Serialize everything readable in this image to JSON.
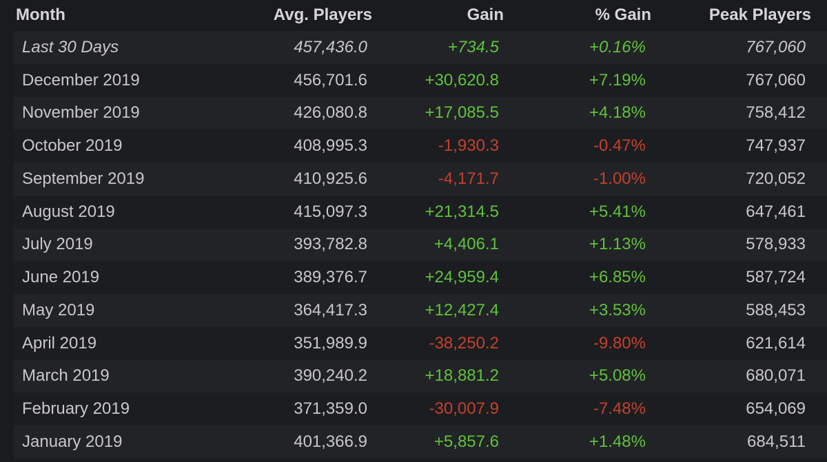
{
  "table": {
    "header": [
      "Month",
      "Avg. Players",
      "Gain",
      "% Gain",
      "Peak Players"
    ],
    "rows": [
      [
        "Last 30 Days",
        "457,436.0",
        "+734.5",
        "+0.16%",
        "767,060"
      ],
      [
        "December 2019",
        "456,701.6",
        "+30,620.8",
        "+7.19%",
        "767,060"
      ],
      [
        "November 2019",
        "426,080.8",
        "+17,085.5",
        "+4.18%",
        "758,412"
      ],
      [
        "October 2019",
        "408,995.3",
        "-1,930.3",
        "-0.47%",
        "747,937"
      ],
      [
        "September 2019",
        "410,925.6",
        "-4,171.7",
        "-1.00%",
        "720,052"
      ],
      [
        "August 2019",
        "415,097.3",
        "+21,314.5",
        "+5.41%",
        "647,461"
      ],
      [
        "July 2019",
        "393,782.8",
        "+4,406.1",
        "+1.13%",
        "578,933"
      ],
      [
        "June 2019",
        "389,376.7",
        "+24,959.4",
        "+6.85%",
        "587,724"
      ],
      [
        "May 2019",
        "364,417.3",
        "+12,427.4",
        "+3.53%",
        "588,453"
      ],
      [
        "April 2019",
        "351,989.9",
        "-38,250.2",
        "-9.80%",
        "621,614"
      ],
      [
        "March 2019",
        "390,240.2",
        "+18,881.2",
        "+5.08%",
        "680,071"
      ],
      [
        "February 2019",
        "371,359.0",
        "-30,007.9",
        "-7.48%",
        "654,069"
      ],
      [
        "January 2019",
        "401,366.9",
        "+5,857.6",
        "+1.48%",
        "684,511"
      ]
    ]
  }
}
